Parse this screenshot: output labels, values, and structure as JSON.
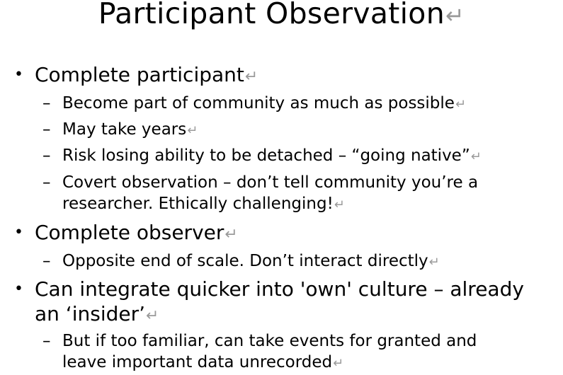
{
  "slide": {
    "title": "Participant Observation",
    "return_mark": "↵",
    "bullet_symbol": "•",
    "dash_symbol": "–",
    "items": [
      {
        "text": "Complete participant",
        "sub": [
          {
            "lines": [
              "Become part of community as much as possible"
            ]
          },
          {
            "lines": [
              "May take years"
            ]
          },
          {
            "lines": [
              "Risk losing ability to be detached – “going native”"
            ]
          },
          {
            "lines": [
              "Covert observation – don’t tell community you’re a",
              "researcher. Ethically challenging!"
            ]
          }
        ]
      },
      {
        "text": "Complete observer",
        "sub": [
          {
            "lines": [
              "Opposite end of scale. Don’t interact directly"
            ]
          }
        ]
      },
      {
        "lines": [
          "Can integrate quicker into 'own' culture – already",
          "an ‘insider’"
        ],
        "sub": [
          {
            "lines": [
              "But if too familiar, can take events for granted and",
              "leave important data unrecorded"
            ]
          }
        ]
      }
    ]
  }
}
